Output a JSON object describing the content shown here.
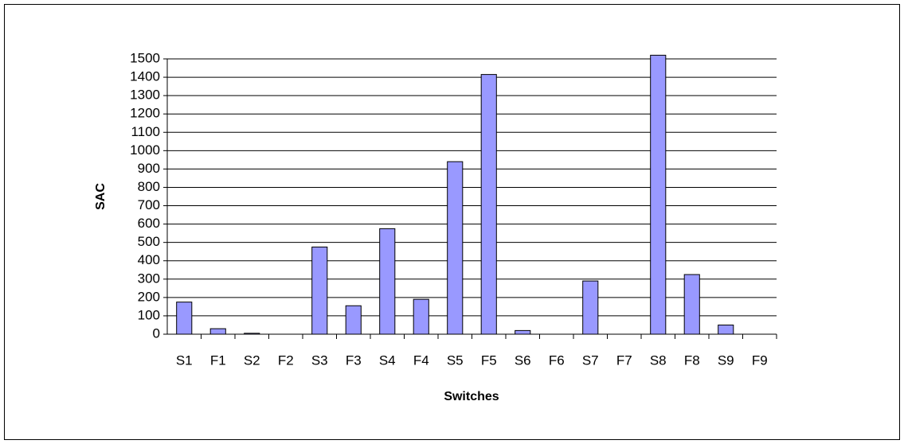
{
  "chart_data": {
    "type": "bar",
    "xlabel": "Switches",
    "ylabel": "SAC",
    "categories": [
      "S1",
      "F1",
      "S2",
      "F2",
      "S3",
      "F3",
      "S4",
      "F4",
      "S5",
      "F5",
      "S6",
      "F6",
      "S7",
      "F7",
      "S8",
      "F8",
      "S9",
      "F9"
    ],
    "values": [
      175,
      30,
      5,
      0,
      475,
      155,
      575,
      190,
      940,
      1415,
      20,
      0,
      290,
      0,
      1520,
      325,
      50,
      0
    ],
    "color": "#9999ff",
    "ylim": [
      0,
      1500
    ],
    "yticks": [
      0,
      100,
      200,
      300,
      400,
      500,
      600,
      700,
      800,
      900,
      1000,
      1100,
      1200,
      1300,
      1400,
      1500
    ],
    "grid": true
  }
}
